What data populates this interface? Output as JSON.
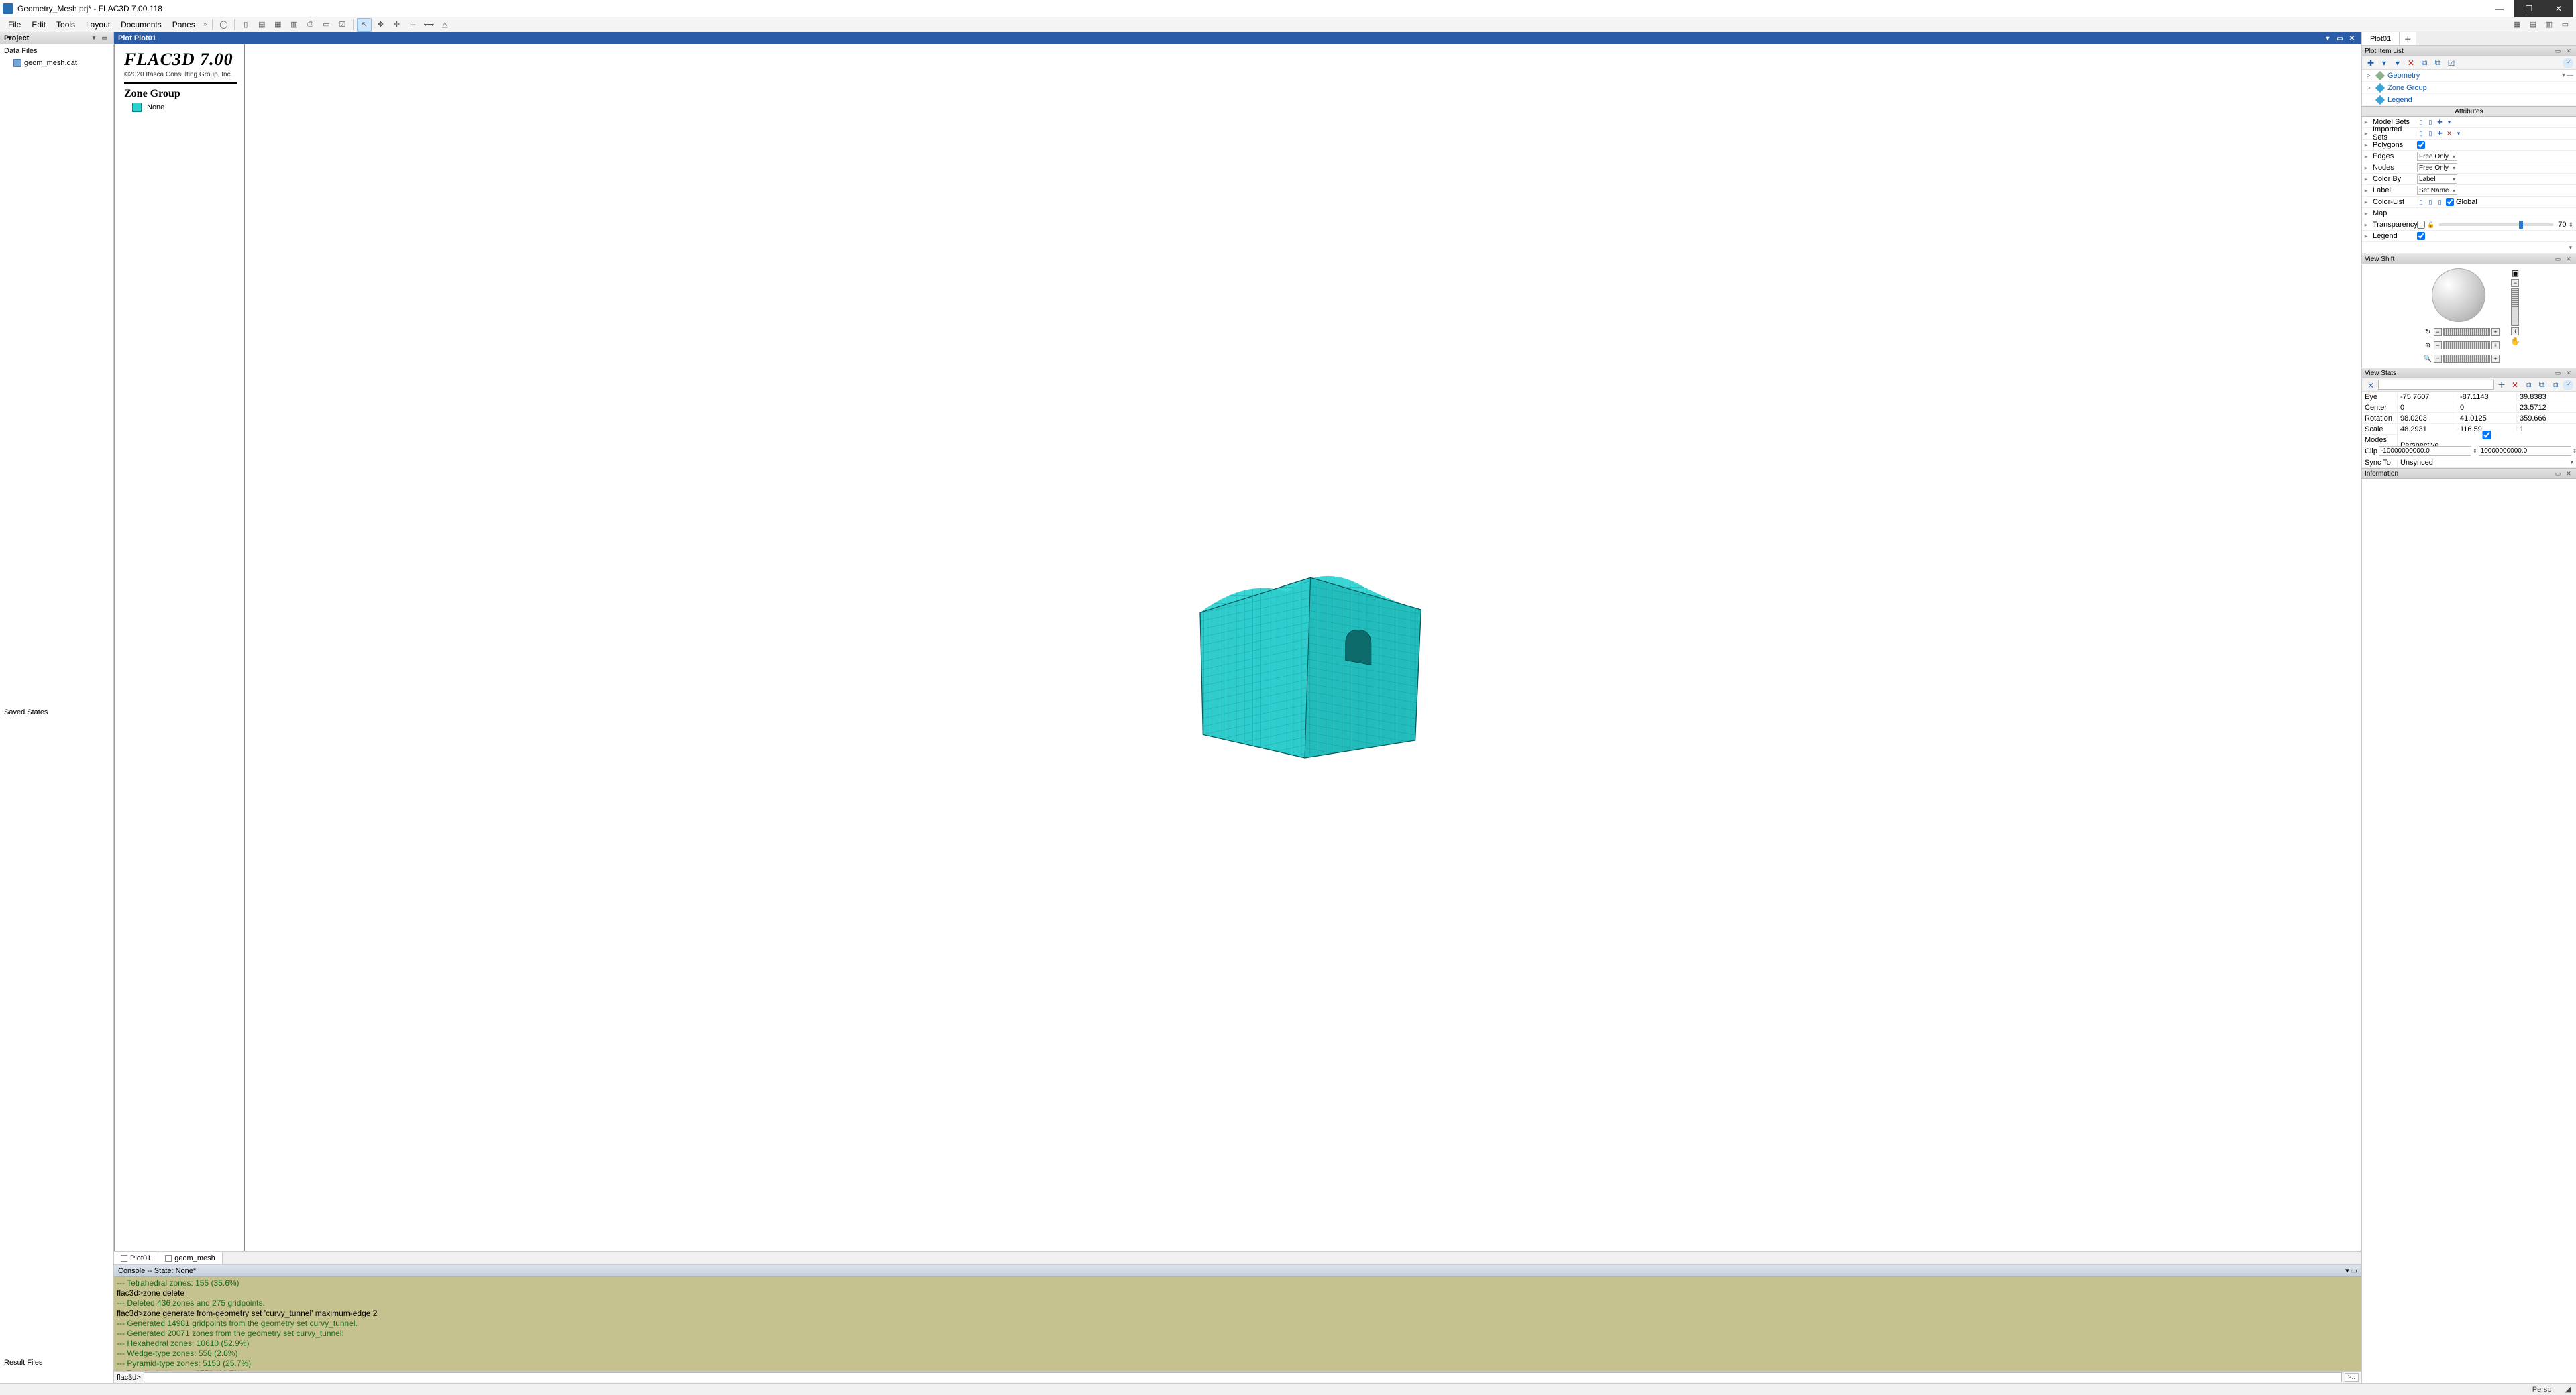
{
  "app": {
    "title": "Geometry_Mesh.prj* - FLAC3D 7.00.118",
    "window_buttons": {
      "min": "—",
      "max": "❐",
      "close": "✕"
    },
    "colors": {
      "titlebar_accent": "#2a5ca8",
      "console_bg": "#c6c28f",
      "console_green": "#1c6b1c",
      "mesh_fill": "#2dc9c9",
      "mesh_edge": "#0a7a7a"
    }
  },
  "menu": {
    "items": [
      "File",
      "Edit",
      "Tools",
      "Layout",
      "Documents",
      "Panes"
    ]
  },
  "toolbar_icons": [
    "◯",
    "▯",
    "▤",
    "▦",
    "▥",
    "⎙",
    "▭",
    "☑"
  ],
  "toolbar_icons2": [
    "↖",
    "✥",
    "✢",
    "＋",
    "⟷",
    "△"
  ],
  "toolbar_right_icons": [
    "▦",
    "▤",
    "▥",
    "▭"
  ],
  "project": {
    "header": "Project",
    "sections": {
      "data_files": {
        "title": "Data Files",
        "items": [
          "geom_mesh.dat"
        ]
      },
      "saved_states": {
        "title": "Saved States"
      },
      "result_files": {
        "title": "Result Files"
      }
    }
  },
  "plot": {
    "window_title": "Plot  Plot01",
    "brand": "FLAC3D 7.00",
    "copyright": "©2020 Itasca Consulting Group, Inc.",
    "zone_group_title": "Zone Group",
    "zone_group_item": "None",
    "swatch_color": "#2dd1d1"
  },
  "doc_tabs": [
    "Plot01",
    "geom_mesh"
  ],
  "console": {
    "header": "Console -- State: None*",
    "prompt": "flac3d>",
    "lines": [
      {
        "cls": "green",
        "text": "---    Tetrahedral zones: 155 (35.6%)"
      },
      {
        "cls": "black",
        "text": "flac3d>zone delete"
      },
      {
        "cls": "green",
        "text": "--- Deleted  436 zones and 275 gridpoints."
      },
      {
        "cls": "black",
        "text": "flac3d>zone generate from-geometry set 'curvy_tunnel' maximum-edge 2"
      },
      {
        "cls": "green",
        "text": "--- Generated 14981 gridpoints from the geometry set curvy_tunnel."
      },
      {
        "cls": "green",
        "text": "--- Generated 20071 zones from the geometry set curvy_tunnel:"
      },
      {
        "cls": "green",
        "text": "---    Hexahedral zones: 10610 (52.9%)"
      },
      {
        "cls": "green",
        "text": "---    Wedge-type zones: 558 (2.8%)"
      },
      {
        "cls": "green",
        "text": "---    Pyramid-type zones: 5153 (25.7%)"
      },
      {
        "cls": "green",
        "text": "---    Tetrahedral zones: 3750 (18.7%)"
      }
    ]
  },
  "right": {
    "tab": "Plot01",
    "plot_item_list_title": "Plot Item List",
    "plot_item_toolbar": [
      "✚",
      "▾",
      "▾",
      "✕",
      "⧉",
      "⧉",
      "☑"
    ],
    "plot_items": [
      {
        "chev": ">",
        "diamond": "dg",
        "label": "Geometry",
        "end": [
          "▾",
          "—"
        ]
      },
      {
        "chev": ">",
        "diamond": "db",
        "label": "Zone Group"
      },
      {
        "chev": "",
        "diamond": "db",
        "label": "Legend"
      }
    ],
    "attributes_title": "Attributes",
    "attributes": [
      {
        "name": "Model Sets",
        "ctrl": "icons"
      },
      {
        "name": "Imported Sets",
        "ctrl": "icons_x"
      },
      {
        "name": "Polygons",
        "ctrl": "check",
        "checked": true
      },
      {
        "name": "Edges",
        "ctrl": "select",
        "value": "Free Only"
      },
      {
        "name": "Nodes",
        "ctrl": "select",
        "value": "Free Only"
      },
      {
        "name": "Color By",
        "ctrl": "select",
        "value": "Label"
      },
      {
        "name": "Label",
        "ctrl": "select",
        "value": "Set Name"
      },
      {
        "name": "Color-List",
        "ctrl": "colorlist",
        "value": "Global"
      },
      {
        "name": "Map",
        "ctrl": "blank"
      },
      {
        "name": "Transparency",
        "ctrl": "slider",
        "value": "70",
        "thumb_pct": 70
      },
      {
        "name": "Legend",
        "ctrl": "check",
        "checked": true
      }
    ],
    "viewshift_title": "View Shift",
    "viewstats_title": "View Stats",
    "viewstats_toolbar": [
      "⨯",
      "▾",
      "＋",
      "✕",
      "⧉",
      "⧉",
      "⧉"
    ],
    "viewstats": {
      "rows": [
        {
          "lbl": "Eye",
          "a": "-75.7607",
          "b": "-87.1143",
          "c": "39.8383"
        },
        {
          "lbl": "Center",
          "a": "0",
          "b": "0",
          "c": "23.5712"
        },
        {
          "lbl": "Rotation",
          "a": "98.0203",
          "b": "41.0125",
          "c": "359.666"
        },
        {
          "lbl": "Scale",
          "a": "48.2931",
          "b": "116.59",
          "c": "1"
        }
      ],
      "modes_label": "Modes",
      "modes_value": "Perspective",
      "clip_label": "Clip",
      "clip_near": "-10000000000.0",
      "clip_far": "10000000000.0",
      "sync_label": "Sync To",
      "sync_value": "Unsynced"
    },
    "information_title": "Information"
  },
  "statusbar": {
    "right1": "Persp",
    "right2": ""
  }
}
